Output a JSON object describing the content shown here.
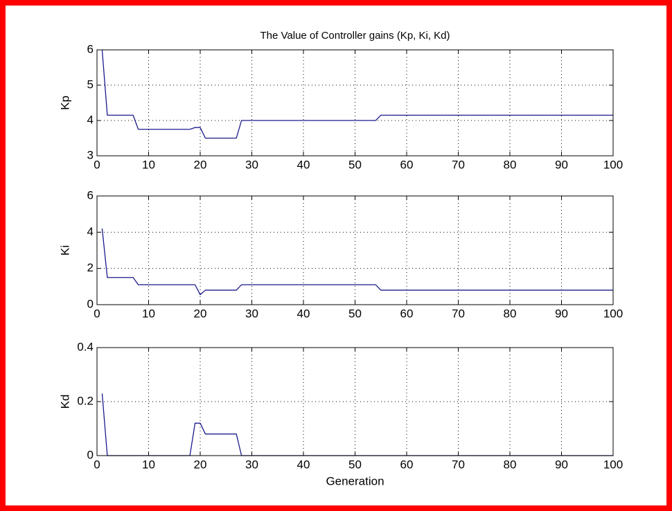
{
  "chart_data": [
    {
      "type": "line",
      "title": "The Value of Controller gains (Kp, Ki, Kd)",
      "y_label": "Kp",
      "color": "#1a1a8c",
      "x": [
        1,
        2,
        7,
        8,
        18,
        19,
        20,
        21,
        27,
        28,
        54,
        55,
        100
      ],
      "values": [
        6,
        4.15,
        4.15,
        3.75,
        3.75,
        3.8,
        3.8,
        3.5,
        3.5,
        4.0,
        4.0,
        4.15,
        4.15
      ],
      "xlim": [
        0,
        100
      ],
      "xticks": [
        0,
        10,
        20,
        30,
        40,
        50,
        60,
        70,
        80,
        90,
        100
      ],
      "ylim": [
        3,
        6
      ],
      "yticks": [
        3,
        4,
        5,
        6
      ],
      "grid": true
    },
    {
      "type": "line",
      "y_label": "Ki",
      "color": "#1a1a8c",
      "x": [
        1,
        2,
        7,
        8,
        19,
        20,
        21,
        27,
        28,
        54,
        55,
        100
      ],
      "values": [
        4.2,
        1.5,
        1.5,
        1.1,
        1.1,
        0.55,
        0.8,
        0.8,
        1.1,
        1.1,
        0.8,
        0.8
      ],
      "xlim": [
        0,
        100
      ],
      "xticks": [
        0,
        10,
        20,
        30,
        40,
        50,
        60,
        70,
        80,
        90,
        100
      ],
      "ylim": [
        0,
        6
      ],
      "yticks": [
        0,
        2,
        4,
        6
      ],
      "grid": true
    },
    {
      "type": "line",
      "y_label": "Kd",
      "x_label": "Generation",
      "color": "#1a1a8c",
      "x": [
        1,
        2,
        18,
        19,
        20,
        21,
        27,
        28,
        100
      ],
      "values": [
        0.23,
        0,
        0,
        0.12,
        0.12,
        0.08,
        0.08,
        0,
        0
      ],
      "xlim": [
        0,
        100
      ],
      "xticks": [
        0,
        10,
        20,
        30,
        40,
        50,
        60,
        70,
        80,
        90,
        100
      ],
      "ylim": [
        0,
        0.4
      ],
      "yticks": [
        0,
        0.2,
        0.4
      ],
      "grid": true
    }
  ]
}
